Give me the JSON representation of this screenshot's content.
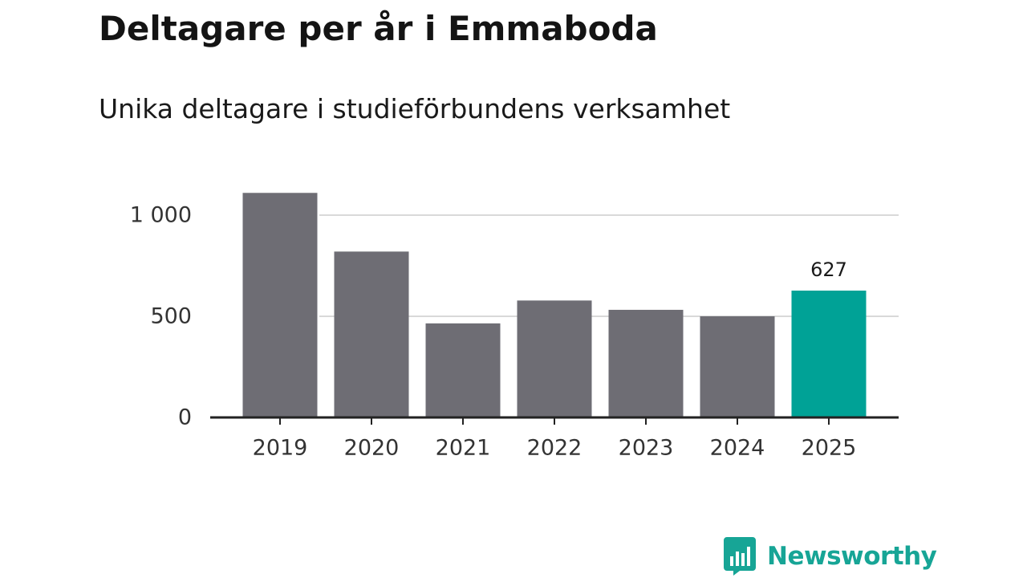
{
  "header": {
    "title": "Deltagare per år i Emmaboda",
    "subtitle": "Unika deltagare i studieförbundens verksamhet"
  },
  "chart_data": {
    "type": "bar",
    "title": "Deltagare per år i Emmaboda",
    "subtitle": "Unika deltagare i studieförbundens verksamhet",
    "xlabel": "",
    "ylabel": "",
    "categories": [
      "2019",
      "2020",
      "2021",
      "2022",
      "2023",
      "2024",
      "2025"
    ],
    "values": [
      1110,
      820,
      465,
      578,
      532,
      500,
      627
    ],
    "highlight_index": 6,
    "data_labels": [
      {
        "index": 6,
        "text": "627"
      }
    ],
    "ylim": [
      0,
      1100
    ],
    "yticks": [
      0,
      500,
      1000
    ],
    "ytick_labels": [
      "0",
      "500",
      "1 000"
    ],
    "grid": true,
    "colors": {
      "bar": "#6e6d74",
      "highlight": "#00a296",
      "grid": "#d9d9d9",
      "axis": "#222222",
      "text": "#333333"
    }
  },
  "branding": {
    "logo_text": "Newsworthy",
    "logo_icon": "bar-chart-speech-bubble-icon",
    "color": "#17a596"
  }
}
